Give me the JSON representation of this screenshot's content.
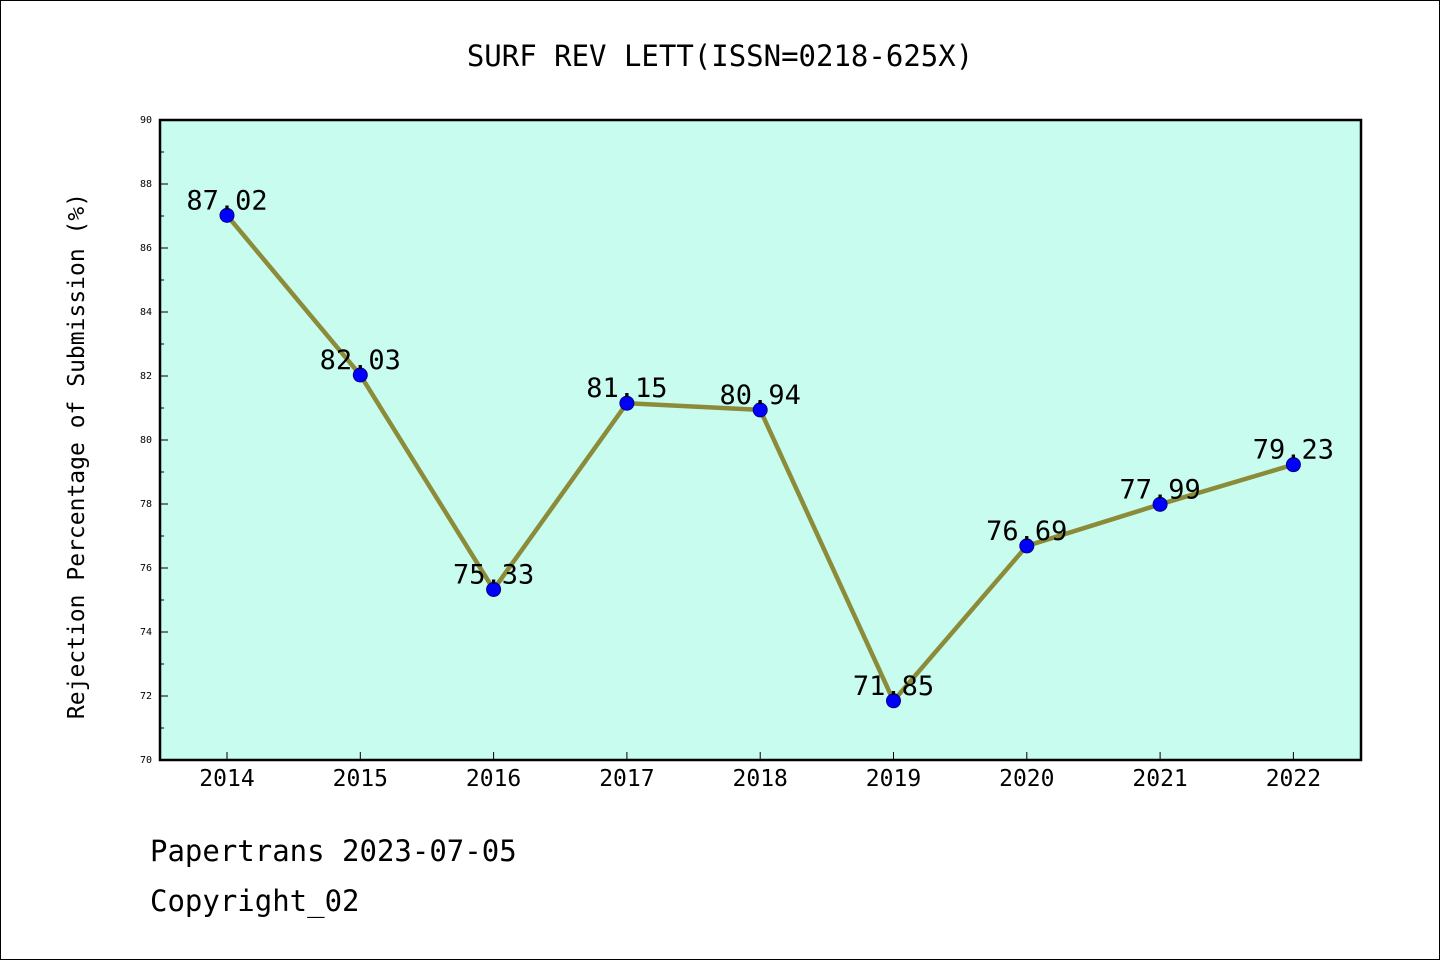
{
  "chart_data": {
    "type": "line",
    "title": "SURF REV LETT(ISSN=0218-625X)",
    "ylabel": "Rejection Percentage of Submission (%)",
    "xlabel": "",
    "categories": [
      "2014",
      "2015",
      "2016",
      "2017",
      "2018",
      "2019",
      "2020",
      "2021",
      "2022"
    ],
    "values": [
      87.02,
      82.03,
      75.33,
      81.15,
      80.94,
      71.85,
      76.69,
      77.99,
      79.23
    ],
    "data_labels": [
      "87.02",
      "82.03",
      "75.33",
      "81.15",
      "80.94",
      "71.85",
      "76.69",
      "77.99",
      "79.23"
    ],
    "ylim": [
      70,
      90
    ],
    "yticks": [
      "70",
      "72",
      "74",
      "76",
      "78",
      "80",
      "82",
      "84",
      "86",
      "88",
      "90"
    ],
    "grid": false,
    "legend": "none",
    "colors": {
      "plot_background": "#c8fcee",
      "line": "#8b8b3a",
      "marker": "#0000ff"
    }
  },
  "footer": {
    "line1": "Papertrans 2023-07-05",
    "line2": "Copyright_02"
  }
}
